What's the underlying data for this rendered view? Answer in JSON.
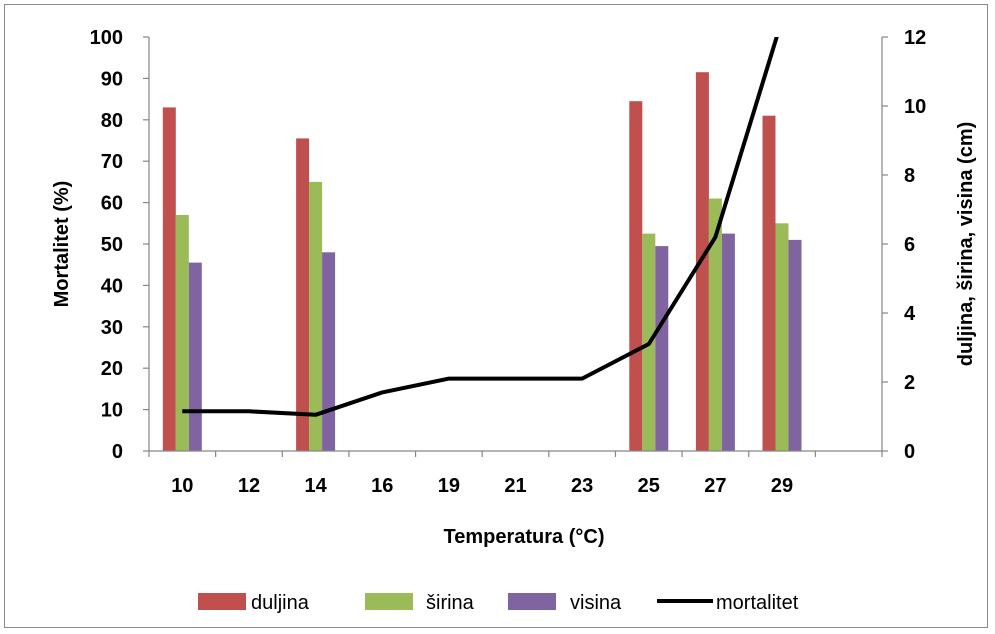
{
  "chart_data": {
    "type": "bar",
    "categories": [
      "10",
      "12",
      "14",
      "16",
      "19",
      "21",
      "23",
      "25",
      "27",
      "29"
    ],
    "xlabel": "Temperatura (°C)",
    "ylabel": "Mortalitet (%)",
    "y2label": "duljina, širina, visina (cm)",
    "ylim": [
      0,
      100
    ],
    "y2lim": [
      0,
      12
    ],
    "yticks": [
      0,
      10,
      20,
      30,
      40,
      50,
      60,
      70,
      80,
      90,
      100
    ],
    "y2ticks": [
      0,
      2,
      4,
      6,
      8,
      10,
      12
    ],
    "grid": false,
    "legend_position": "bottom",
    "series": [
      {
        "name": "duljina",
        "type": "bar",
        "axis": "left",
        "color": "#C0504D",
        "values": [
          83,
          null,
          75.5,
          null,
          null,
          null,
          null,
          84.5,
          91.5,
          81
        ]
      },
      {
        "name": "širina",
        "type": "bar",
        "axis": "left",
        "color": "#9BBB59",
        "values": [
          57,
          null,
          65,
          null,
          null,
          null,
          null,
          52.5,
          61,
          55
        ]
      },
      {
        "name": "visina",
        "type": "bar",
        "axis": "left",
        "color": "#8064A2",
        "values": [
          45.5,
          null,
          48,
          null,
          null,
          null,
          null,
          49.5,
          52.5,
          51
        ]
      },
      {
        "name": "mortalitet",
        "type": "line",
        "axis": "right",
        "color": "#000000",
        "values": [
          1.15,
          1.15,
          1.05,
          1.7,
          2.1,
          2.1,
          2.1,
          3.1,
          6.2,
          12.5
        ]
      }
    ]
  }
}
